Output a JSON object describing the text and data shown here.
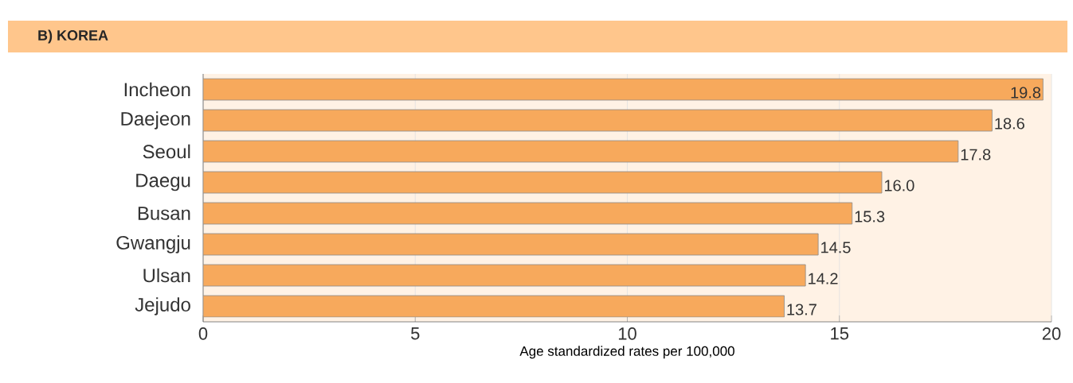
{
  "chart_data": {
    "type": "bar",
    "orientation": "horizontal",
    "title": "B) KOREA",
    "categories": [
      "Incheon",
      "Daejeon",
      "Seoul",
      "Daegu",
      "Busan",
      "Gwangju",
      "Ulsan",
      "Jejudo"
    ],
    "values": [
      19.8,
      18.6,
      17.8,
      16.0,
      15.3,
      14.5,
      14.2,
      13.7
    ],
    "value_labels": [
      "19.8",
      "18.6",
      "17.8",
      "16.0",
      "15.3",
      "14.5",
      "14.2",
      "13.7"
    ],
    "color": "#f7a95c",
    "xlim": [
      0,
      20
    ],
    "xticks": [
      0,
      5,
      10,
      15,
      20
    ],
    "grid": "x",
    "xlabel": "Age standardized rates per 100,000"
  }
}
